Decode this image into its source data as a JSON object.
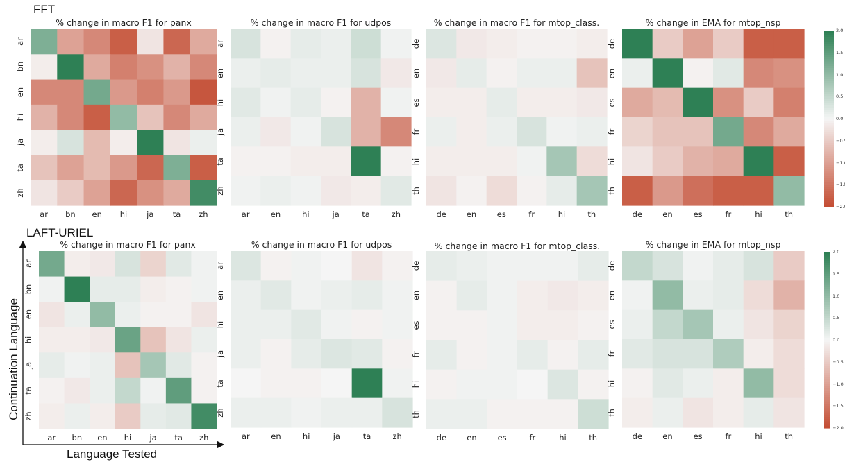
{
  "sections": [
    {
      "label": "FFT"
    },
    {
      "label": "LAFT-URIEL"
    }
  ],
  "axes": {
    "ylabel": "Continuation Language",
    "xlabel": "Language Tested"
  },
  "colorbar": {
    "ticks": [
      "2.0",
      "1.5",
      "1.0",
      "0.5",
      "0.0",
      "−0.5",
      "−1.0",
      "−1.5",
      "−2.0"
    ],
    "range": [
      -2,
      2
    ],
    "colors": {
      "neg": "#c44e34",
      "mid": "#f5f5f5",
      "pos": "#2e8055"
    }
  },
  "chart_data": [
    {
      "type": "heatmap",
      "title": "% change in macro F1 for panx",
      "x": [
        "ar",
        "bn",
        "en",
        "hi",
        "ja",
        "ta",
        "zh"
      ],
      "y": [
        "ar",
        "bn",
        "en",
        "hi",
        "ja",
        "ta",
        "zh"
      ],
      "values": [
        [
          1.2,
          -1.0,
          -1.3,
          -1.8,
          -0.2,
          -1.7,
          -0.9
        ],
        [
          -0.1,
          2.0,
          -0.9,
          -1.4,
          -1.2,
          -0.8,
          -1.3
        ],
        [
          -1.3,
          -1.3,
          1.3,
          -1.1,
          -1.4,
          -1.1,
          -1.9
        ],
        [
          -0.8,
          -1.3,
          -1.8,
          1.0,
          -0.6,
          -1.3,
          -0.9
        ],
        [
          -0.1,
          0.3,
          -0.7,
          -0.1,
          2.0,
          -0.2,
          0.1
        ],
        [
          -0.6,
          -1.0,
          -0.7,
          -1.1,
          -1.7,
          1.2,
          -1.8
        ],
        [
          -0.2,
          -0.5,
          -1.0,
          -1.7,
          -1.2,
          -0.9,
          1.8
        ]
      ]
    },
    {
      "type": "heatmap",
      "title": "% change in macro F1 for udpos",
      "x": [
        "ar",
        "en",
        "hi",
        "ja",
        "ta",
        "zh"
      ],
      "y": [
        "ar",
        "en",
        "hi",
        "ja",
        "ta",
        "zh"
      ],
      "values": [
        [
          0.3,
          -0.05,
          0.15,
          0.1,
          0.4,
          0.05
        ],
        [
          0.1,
          0.15,
          0.1,
          0.1,
          0.3,
          -0.15
        ],
        [
          0.2,
          0.05,
          0.15,
          -0.05,
          -0.8,
          0.05
        ],
        [
          0.1,
          -0.15,
          0.05,
          0.3,
          -0.8,
          -1.3
        ],
        [
          -0.05,
          -0.05,
          -0.1,
          -0.1,
          2.0,
          -0.05
        ],
        [
          0.05,
          0.1,
          0.05,
          -0.15,
          -0.1,
          0.2
        ]
      ]
    },
    {
      "type": "heatmap",
      "title": "% change in macro F1 for mtop_class.",
      "x": [
        "de",
        "en",
        "es",
        "fr",
        "hi",
        "th"
      ],
      "y": [
        "de",
        "en",
        "es",
        "fr",
        "hi",
        "th"
      ],
      "values": [
        [
          0.25,
          -0.15,
          -0.1,
          -0.05,
          -0.05,
          -0.1
        ],
        [
          -0.15,
          0.15,
          -0.05,
          0.1,
          0.1,
          -0.6
        ],
        [
          -0.1,
          -0.1,
          0.15,
          -0.1,
          -0.1,
          -0.15
        ],
        [
          0.1,
          -0.1,
          0.1,
          0.3,
          0.05,
          0.1
        ],
        [
          -0.1,
          -0.1,
          -0.1,
          0.05,
          0.8,
          -0.3
        ],
        [
          -0.2,
          -0.05,
          -0.3,
          -0.05,
          0.15,
          0.8
        ]
      ]
    },
    {
      "type": "heatmap",
      "title": "% change in EMA for mtop_nsp",
      "x": [
        "de",
        "en",
        "es",
        "fr",
        "hi",
        "th"
      ],
      "y": [
        "de",
        "en",
        "es",
        "fr",
        "hi",
        "th"
      ],
      "values": [
        [
          2.0,
          -0.5,
          -1.0,
          -0.5,
          -1.8,
          -1.8
        ],
        [
          0.1,
          2.0,
          -0.05,
          0.2,
          -1.3,
          -1.2
        ],
        [
          -0.9,
          -0.7,
          2.0,
          -1.2,
          -0.5,
          -1.4
        ],
        [
          -0.4,
          -0.6,
          -0.6,
          1.3,
          -1.3,
          -0.9
        ],
        [
          -0.2,
          -0.5,
          -0.8,
          -0.9,
          2.0,
          -1.8
        ],
        [
          -1.8,
          -1.1,
          -1.6,
          -1.8,
          -1.8,
          1.0
        ]
      ]
    },
    {
      "type": "heatmap",
      "title": "% change in macro F1 for panx",
      "x": [
        "ar",
        "bn",
        "en",
        "hi",
        "ja",
        "ta",
        "zh"
      ],
      "y": [
        "ar",
        "bn",
        "en",
        "hi",
        "ja",
        "ta",
        "zh"
      ],
      "values": [
        [
          1.3,
          -0.1,
          -0.15,
          0.3,
          -0.4,
          0.2,
          0.05
        ],
        [
          0.05,
          2.0,
          0.15,
          0.15,
          -0.1,
          -0.05,
          0.05
        ],
        [
          -0.2,
          0.1,
          1.0,
          0.1,
          -0.05,
          -0.05,
          -0.2
        ],
        [
          -0.1,
          -0.1,
          -0.15,
          1.4,
          -0.6,
          -0.2,
          0.1
        ],
        [
          0.15,
          0.05,
          0.1,
          -0.6,
          0.8,
          0.2,
          -0.05
        ],
        [
          -0.05,
          -0.15,
          0.1,
          0.5,
          0.05,
          1.5,
          -0.05
        ],
        [
          -0.1,
          0.1,
          -0.1,
          -0.5,
          0.15,
          0.2,
          1.8
        ]
      ]
    },
    {
      "type": "heatmap",
      "title": "% change in macro F1 for udpos",
      "x": [
        "ar",
        "en",
        "hi",
        "ja",
        "ta",
        "zh"
      ],
      "y": [
        "ar",
        "en",
        "hi",
        "ja",
        "ta",
        "zh"
      ],
      "values": [
        [
          0.25,
          -0.05,
          0.05,
          0.0,
          -0.2,
          -0.05
        ],
        [
          0.1,
          0.2,
          0.05,
          0.1,
          0.15,
          0.05
        ],
        [
          0.1,
          0.1,
          0.2,
          0.05,
          -0.05,
          0.05
        ],
        [
          0.1,
          -0.05,
          0.15,
          0.25,
          0.2,
          -0.05
        ],
        [
          0.0,
          -0.05,
          -0.05,
          0.0,
          2.0,
          0.05
        ],
        [
          0.1,
          0.1,
          0.05,
          0.1,
          0.1,
          0.3
        ]
      ]
    },
    {
      "type": "heatmap",
      "title": "% change in macro F1 for mtop_class.",
      "x": [
        "de",
        "en",
        "es",
        "fr",
        "hi",
        "th"
      ],
      "y": [
        "de",
        "en",
        "es",
        "fr",
        "hi",
        "th"
      ],
      "values": [
        [
          0.15,
          0.1,
          0.05,
          0.05,
          0.05,
          0.15
        ],
        [
          -0.05,
          0.15,
          0.05,
          -0.1,
          -0.15,
          -0.1
        ],
        [
          -0.05,
          -0.05,
          0.05,
          -0.1,
          -0.1,
          -0.05
        ],
        [
          0.15,
          -0.05,
          0.05,
          0.15,
          -0.05,
          0.15
        ],
        [
          -0.05,
          0.05,
          0.05,
          0.0,
          0.25,
          -0.05
        ],
        [
          0.1,
          0.1,
          -0.05,
          -0.05,
          -0.05,
          0.4
        ]
      ]
    },
    {
      "type": "heatmap",
      "title": "% change in EMA for mtop_nsp",
      "x": [
        "de",
        "en",
        "es",
        "fr",
        "hi",
        "th"
      ],
      "y": [
        "de",
        "en",
        "es",
        "fr",
        "hi",
        "th"
      ],
      "values": [
        [
          0.5,
          0.3,
          0.05,
          0.15,
          0.3,
          -0.5
        ],
        [
          0.05,
          1.0,
          0.1,
          0.15,
          -0.3,
          -0.8
        ],
        [
          0.1,
          0.5,
          0.8,
          0.1,
          -0.2,
          -0.4
        ],
        [
          0.2,
          0.3,
          0.3,
          0.7,
          -0.1,
          -0.3
        ],
        [
          -0.05,
          0.2,
          0.1,
          -0.1,
          1.0,
          -0.3
        ],
        [
          -0.1,
          0.1,
          -0.2,
          -0.1,
          0.15,
          -0.2
        ]
      ]
    }
  ]
}
